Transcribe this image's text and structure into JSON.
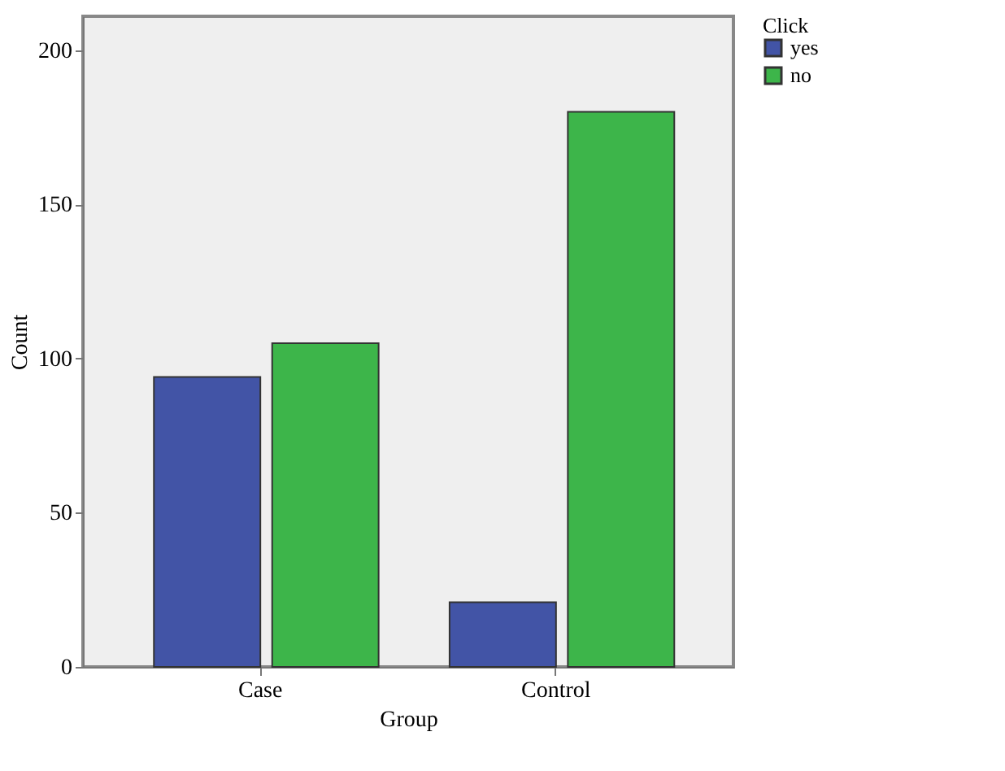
{
  "chart_data": {
    "type": "bar",
    "xlabel": "Group",
    "ylabel": "Count",
    "legend_title": "Click",
    "categories": [
      "Case",
      "Control"
    ],
    "series": [
      {
        "name": "yes",
        "color": "#4254a6",
        "values": [
          94,
          21
        ]
      },
      {
        "name": "no",
        "color": "#3db54a",
        "values": [
          105,
          180
        ]
      }
    ],
    "ylim": [
      0,
      211
    ],
    "yticks": [
      0,
      50,
      100,
      150,
      200
    ],
    "grid": false,
    "legend": "top right"
  }
}
